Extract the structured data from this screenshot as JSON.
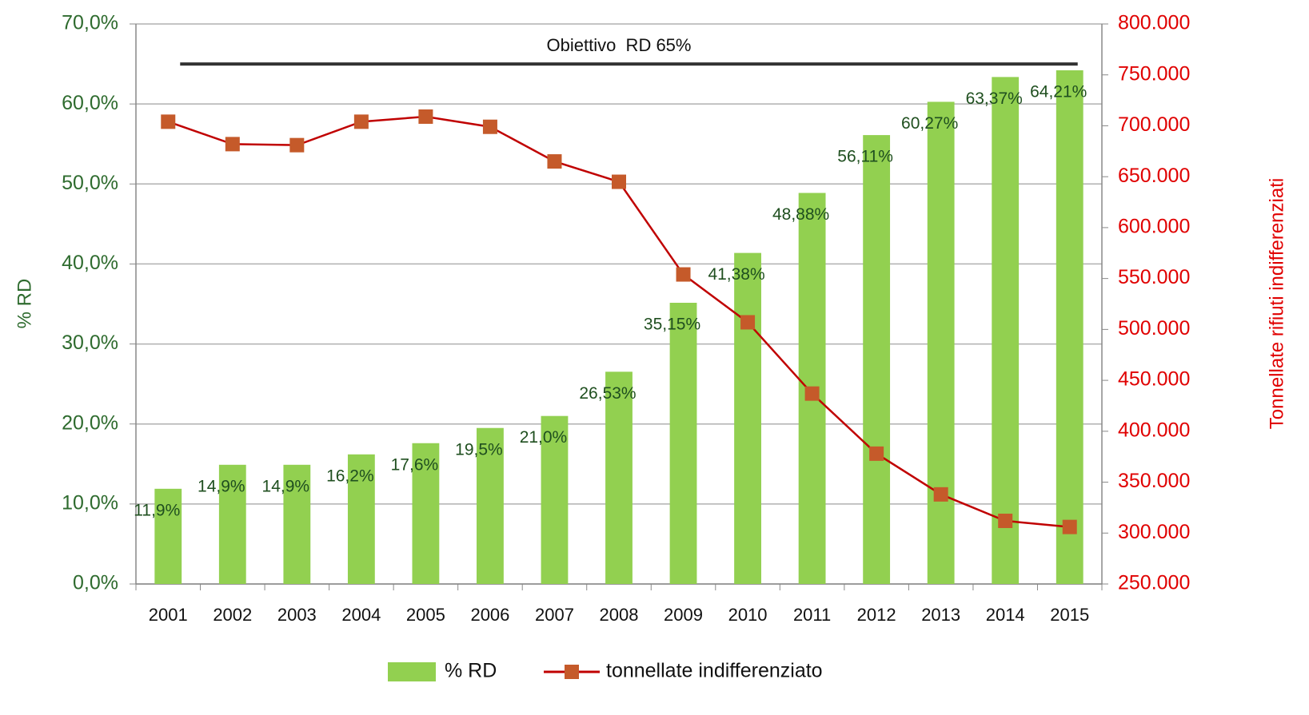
{
  "chart_data": {
    "type": "combo",
    "categories": [
      "2001",
      "2002",
      "2003",
      "2004",
      "2005",
      "2006",
      "2007",
      "2008",
      "2009",
      "2010",
      "2011",
      "2012",
      "2013",
      "2014",
      "2015"
    ],
    "series": [
      {
        "name": "% RD",
        "type": "bar",
        "axis": "y",
        "color": "#92d050",
        "values": [
          11.9,
          14.9,
          14.9,
          16.2,
          17.6,
          19.5,
          21.0,
          26.53,
          35.15,
          41.38,
          48.88,
          56.11,
          60.27,
          63.37,
          64.21
        ],
        "value_labels": [
          "11,9%",
          "14,9%",
          "14,9%",
          "16,2%",
          "17,6%",
          "19,5%",
          "21,0%",
          "26,53%",
          "35,15%",
          "41,38%",
          "48,88%",
          "56,11%",
          "60,27%",
          "63,37%",
          "64,21%"
        ]
      },
      {
        "name": "tonnellate indifferenziato",
        "type": "line",
        "axis": "y2",
        "color": "#c00000",
        "marker_color": "#c55a2a",
        "values": [
          704000,
          682000,
          681000,
          704000,
          709000,
          699000,
          665000,
          645000,
          554000,
          507000,
          437000,
          378000,
          338000,
          312000,
          306000
        ]
      }
    ],
    "target": {
      "label": "Obiettivo  RD 65%",
      "value": 65
    },
    "ylabel": "% RD",
    "y2label": "Tonnellate rifiuti indifferenziati",
    "ylim": [
      0,
      70
    ],
    "yticks": [
      {
        "value": 0,
        "label": "0,0%"
      },
      {
        "value": 10,
        "label": "10,0%"
      },
      {
        "value": 20,
        "label": "20,0%"
      },
      {
        "value": 30,
        "label": "30,0%"
      },
      {
        "value": 40,
        "label": "40,0%"
      },
      {
        "value": 50,
        "label": "50,0%"
      },
      {
        "value": 60,
        "label": "60,0%"
      },
      {
        "value": 70,
        "label": "70,0%"
      }
    ],
    "y2lim": [
      250000,
      800000
    ],
    "y2ticks": [
      {
        "value": 250000,
        "label": "250.000"
      },
      {
        "value": 300000,
        "label": "300.000"
      },
      {
        "value": 350000,
        "label": "350.000"
      },
      {
        "value": 400000,
        "label": "400.000"
      },
      {
        "value": 450000,
        "label": "450.000"
      },
      {
        "value": 500000,
        "label": "500.000"
      },
      {
        "value": 550000,
        "label": "550.000"
      },
      {
        "value": 600000,
        "label": "600.000"
      },
      {
        "value": 650000,
        "label": "650.000"
      },
      {
        "value": 700000,
        "label": "700.000"
      },
      {
        "value": 750000,
        "label": "750.000"
      },
      {
        "value": 800000,
        "label": "800.000"
      }
    ],
    "grid": true,
    "legend": "bottom"
  }
}
